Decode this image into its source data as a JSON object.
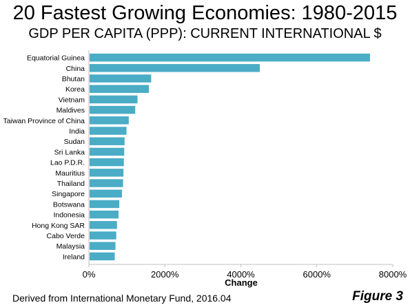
{
  "title": "20 Fastest Growing Economies: 1980-2015",
  "subtitle": "GDP PER CAPITA (PPP): CURRENT INTERNATIONAL $",
  "source": "Derived from International Monetary Fund, 2016.04",
  "figure_label": "Figure 3",
  "colors": {
    "bar": "#4bacc6",
    "axis": "#bfbfbf"
  },
  "chart_data": {
    "type": "bar",
    "orientation": "horizontal",
    "categories": [
      "Equatorial Guinea",
      "China",
      "Bhutan",
      "Korea",
      "Vietnam",
      "Maldives",
      "Taiwan Province of China",
      "India",
      "Sudan",
      "Sri Lanka",
      "Lao P.D.R.",
      "Mauritius",
      "Thailand",
      "Singapore",
      "Botswana",
      "Indonesia",
      "Hong Kong SAR",
      "Cabo Verde",
      "Malaysia",
      "Ireland"
    ],
    "values": [
      7400,
      4500,
      1640,
      1580,
      1280,
      1220,
      1050,
      990,
      940,
      930,
      920,
      910,
      900,
      870,
      800,
      780,
      740,
      720,
      700,
      680
    ],
    "xlabel": "Change",
    "xlim": [
      0,
      8000
    ],
    "xticks": [
      0,
      2000,
      4000,
      6000,
      8000
    ],
    "xtick_labels": [
      "0%",
      "2000%",
      "4000%",
      "6000%",
      "8000%"
    ],
    "grid": false
  }
}
